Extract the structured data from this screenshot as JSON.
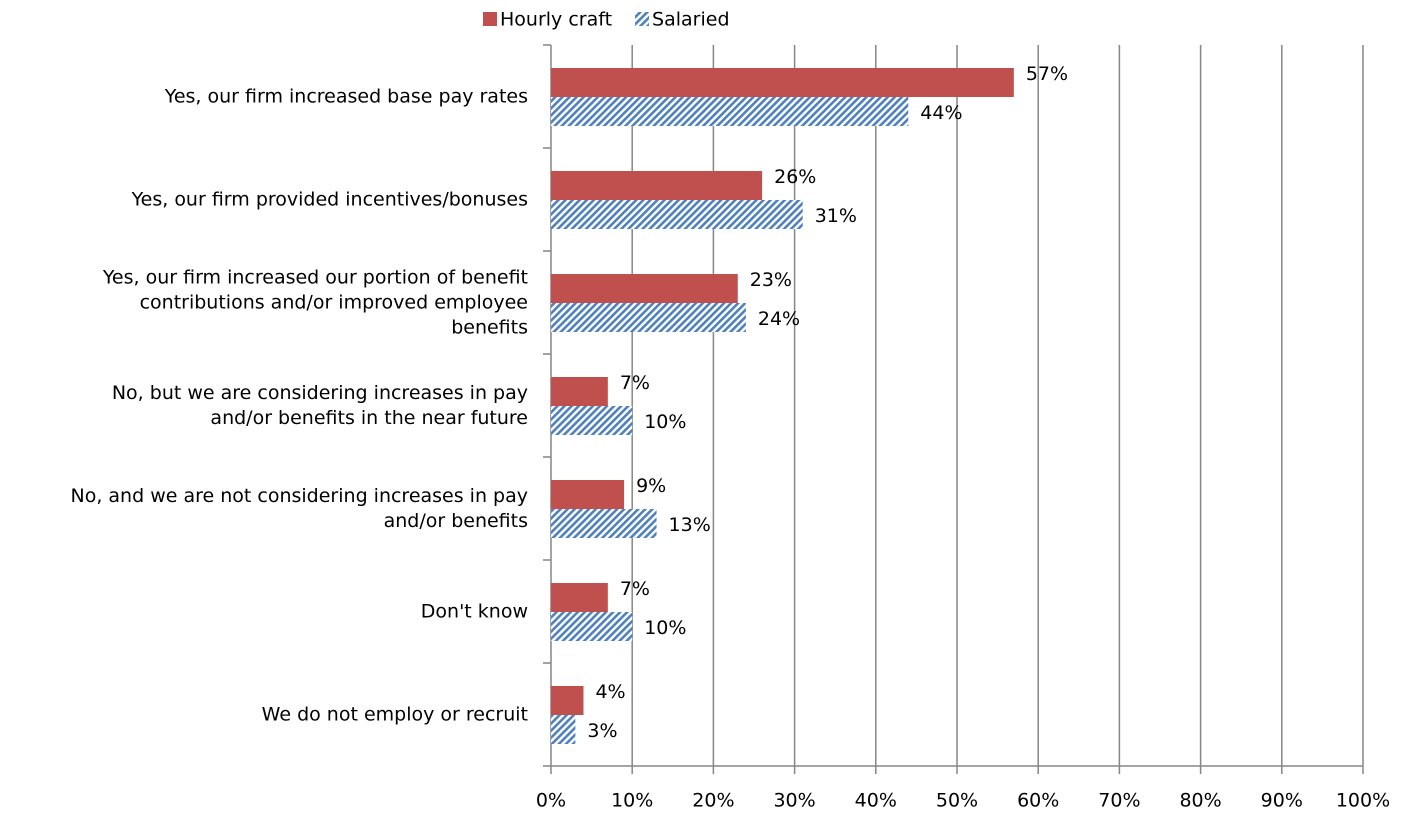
{
  "chart_data": {
    "type": "hbar",
    "categories": [
      "Yes, our firm increased base pay rates",
      "Yes, our firm provided incentives/bonuses",
      "Yes, our firm increased our portion of benefit\ncontributions and/or improved employee\nbenefits",
      "No, but we are considering increases in pay\nand/or benefits in the near future",
      "No, and we are not considering increases in pay\nand/or benefits",
      "Don't know",
      "We do not employ or recruit"
    ],
    "series": [
      {
        "name": "Hourly craft",
        "color": "#c0504d",
        "values": [
          57,
          26,
          23,
          7,
          9,
          7,
          4
        ],
        "value_labels": [
          "57%",
          "26%",
          "23%",
          "7%",
          "9%",
          "7%",
          "4%"
        ]
      },
      {
        "name": "Salaried",
        "color": "#4f81bd",
        "pattern": "hatch",
        "values": [
          44,
          31,
          24,
          10,
          13,
          10,
          3
        ],
        "value_labels": [
          "44%",
          "31%",
          "24%",
          "10%",
          "13%",
          "10%",
          "3%"
        ]
      }
    ],
    "xlim": [
      0,
      100
    ],
    "xticks": [
      {
        "value": 0,
        "label": "0%"
      },
      {
        "value": 10,
        "label": "10%"
      },
      {
        "value": 20,
        "label": "20%"
      },
      {
        "value": 30,
        "label": "30%"
      },
      {
        "value": 40,
        "label": "40%"
      },
      {
        "value": 50,
        "label": "50%"
      },
      {
        "value": 60,
        "label": "60%"
      },
      {
        "value": 70,
        "label": "70%"
      },
      {
        "value": 80,
        "label": "80%"
      },
      {
        "value": 90,
        "label": "90%"
      },
      {
        "value": 100,
        "label": "100%"
      }
    ],
    "grid": true,
    "legend": "top"
  }
}
